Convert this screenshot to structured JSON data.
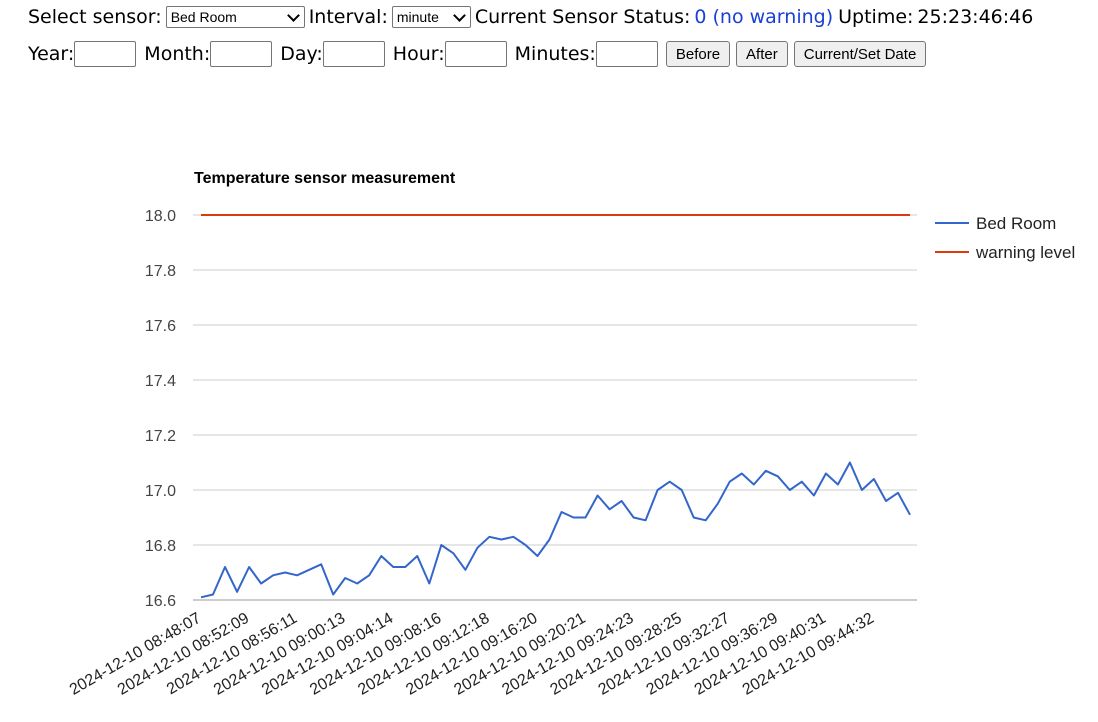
{
  "controls": {
    "select_sensor_label": "Select sensor:",
    "sensor_value": "Bed Room",
    "interval_label": "Interval:",
    "interval_value": "minute",
    "status_label": "Current Sensor Status:",
    "status_value": "0 (no warning)",
    "uptime_label": "Uptime:",
    "uptime_value": "25:23:46:46",
    "year_label": "Year:",
    "month_label": "Month:",
    "day_label": "Day:",
    "hour_label": "Hour:",
    "minutes_label": "Minutes:",
    "before_button": "Before",
    "after_button": "After",
    "current_button": "Current/Set Date"
  },
  "chart_data": {
    "type": "line",
    "title": "Temperature sensor measurement",
    "ylim": [
      16.6,
      18.0
    ],
    "yticks": [
      16.6,
      16.8,
      17.0,
      17.2,
      17.4,
      17.6,
      17.8,
      18.0
    ],
    "grid": true,
    "legend": "right",
    "x_tick_labels": [
      "2024-12-10 08:48:07",
      "2024-12-10 08:52:09",
      "2024-12-10 08:56:11",
      "2024-12-10 09:00:13",
      "2024-12-10 09:04:14",
      "2024-12-10 09:08:16",
      "2024-12-10 09:12:18",
      "2024-12-10 09:16:20",
      "2024-12-10 09:20:21",
      "2024-12-10 09:24:23",
      "2024-12-10 09:28:25",
      "2024-12-10 09:32:27",
      "2024-12-10 09:36:29",
      "2024-12-10 09:40:31",
      "2024-12-10 09:44:32"
    ],
    "series": [
      {
        "name": "Bed Room",
        "color": "#3366cc",
        "values": [
          16.61,
          16.62,
          16.72,
          16.63,
          16.72,
          16.66,
          16.69,
          16.7,
          16.69,
          16.71,
          16.73,
          16.62,
          16.68,
          16.66,
          16.69,
          16.76,
          16.72,
          16.72,
          16.76,
          16.66,
          16.8,
          16.77,
          16.71,
          16.79,
          16.83,
          16.82,
          16.83,
          16.8,
          16.76,
          16.82,
          16.92,
          16.9,
          16.9,
          16.98,
          16.93,
          16.96,
          16.9,
          16.89,
          17.0,
          17.03,
          17.0,
          16.9,
          16.89,
          16.95,
          17.03,
          17.06,
          17.02,
          17.07,
          17.05,
          17.0,
          17.03,
          16.98,
          17.06,
          17.02,
          17.1,
          17.0,
          17.04,
          16.96,
          16.99,
          16.91
        ]
      },
      {
        "name": "warning level",
        "color": "#dc3912",
        "values": [
          18.0,
          18.0
        ]
      }
    ]
  }
}
